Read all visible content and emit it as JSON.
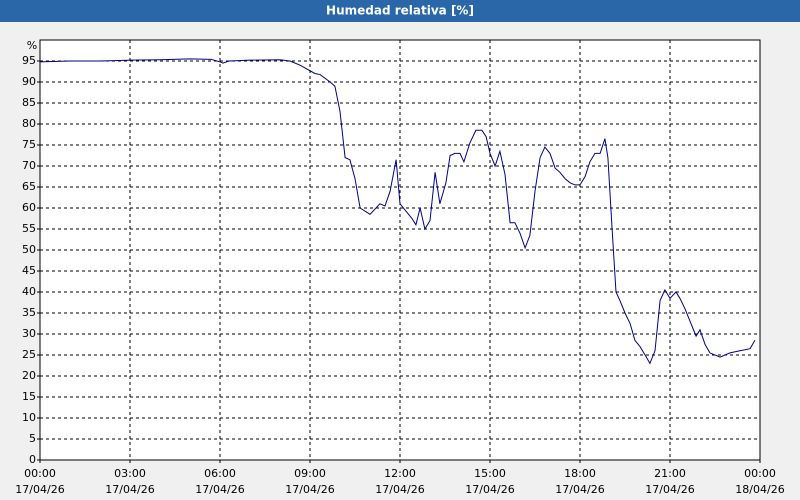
{
  "chart_data": {
    "type": "line",
    "title": "Humedad relativa [%]",
    "y_unit": "%",
    "xlim": [
      0,
      24
    ],
    "ylim": [
      0,
      100
    ],
    "yticks": [
      0,
      5,
      10,
      15,
      20,
      25,
      30,
      35,
      40,
      45,
      50,
      55,
      60,
      65,
      70,
      75,
      80,
      85,
      90,
      95
    ],
    "xticks": [
      {
        "value": 0,
        "label": [
          "00:00",
          "17/04/26"
        ]
      },
      {
        "value": 3,
        "label": [
          "03:00",
          "17/04/26"
        ]
      },
      {
        "value": 6,
        "label": [
          "06:00",
          "17/04/26"
        ]
      },
      {
        "value": 9,
        "label": [
          "09:00",
          "17/04/26"
        ]
      },
      {
        "value": 12,
        "label": [
          "12:00",
          "17/04/26"
        ]
      },
      {
        "value": 15,
        "label": [
          "15:00",
          "17/04/26"
        ]
      },
      {
        "value": 18,
        "label": [
          "18:00",
          "17/04/26"
        ]
      },
      {
        "value": 21,
        "label": [
          "21:00",
          "17/04/26"
        ]
      },
      {
        "value": 24,
        "label": [
          "00:00",
          "18/04/26"
        ]
      }
    ],
    "grid": true,
    "series": [
      {
        "name": "Humedad relativa",
        "color": "#00008b",
        "x": [
          0,
          1,
          2,
          3,
          4,
          5,
          5.7,
          6,
          6.1,
          6.3,
          7,
          8,
          8.33,
          8.67,
          9.17,
          9.33,
          9.67,
          9.83,
          10,
          10.17,
          10.33,
          10.5,
          10.67,
          11,
          11.33,
          11.5,
          11.67,
          11.87,
          12,
          12.17,
          12.4,
          12.53,
          12.67,
          12.83,
          13,
          13.17,
          13.33,
          13.53,
          13.67,
          13.83,
          14,
          14.13,
          14.33,
          14.53,
          14.73,
          14.87,
          15,
          15.17,
          15.33,
          15.5,
          15.67,
          15.83,
          16,
          16.17,
          16.33,
          16.5,
          16.67,
          16.83,
          17,
          17.17,
          17.33,
          17.5,
          17.67,
          17.83,
          18,
          18.17,
          18.33,
          18.5,
          18.67,
          18.83,
          18.93,
          19.07,
          19.2,
          19.33,
          19.5,
          19.67,
          19.83,
          20,
          20.17,
          20.33,
          20.5,
          20.67,
          20.83,
          21,
          21.2,
          21.33,
          21.5,
          21.67,
          21.87,
          22,
          22.17,
          22.33,
          22.67,
          23,
          23.33,
          23.67,
          23.83
        ],
        "values": [
          94.8,
          95,
          95,
          95.2,
          95.3,
          95.5,
          95.4,
          94.8,
          94.5,
          95,
          95.2,
          95.3,
          95,
          94,
          92,
          91.8,
          90,
          89,
          83,
          72,
          71.5,
          67,
          60,
          58.5,
          61,
          60.5,
          64,
          71.5,
          61,
          59.5,
          57.5,
          56,
          60,
          55,
          57,
          68.5,
          61,
          66,
          72.5,
          73,
          73,
          71,
          75.5,
          78.5,
          78.5,
          77,
          73,
          70,
          73.5,
          68,
          56.5,
          56.5,
          54,
          50.5,
          53.5,
          64,
          72,
          74.5,
          73,
          69.5,
          68.5,
          67,
          66,
          65.5,
          65.5,
          67.5,
          71,
          73,
          73,
          76.5,
          72,
          55,
          40,
          38,
          35,
          32.5,
          28.5,
          27,
          25,
          23,
          26,
          38,
          40.5,
          38.5,
          40,
          38.5,
          36,
          33,
          29.5,
          31,
          27.5,
          25.5,
          24.5,
          25.5,
          26,
          26.5,
          28.5
        ]
      }
    ]
  }
}
